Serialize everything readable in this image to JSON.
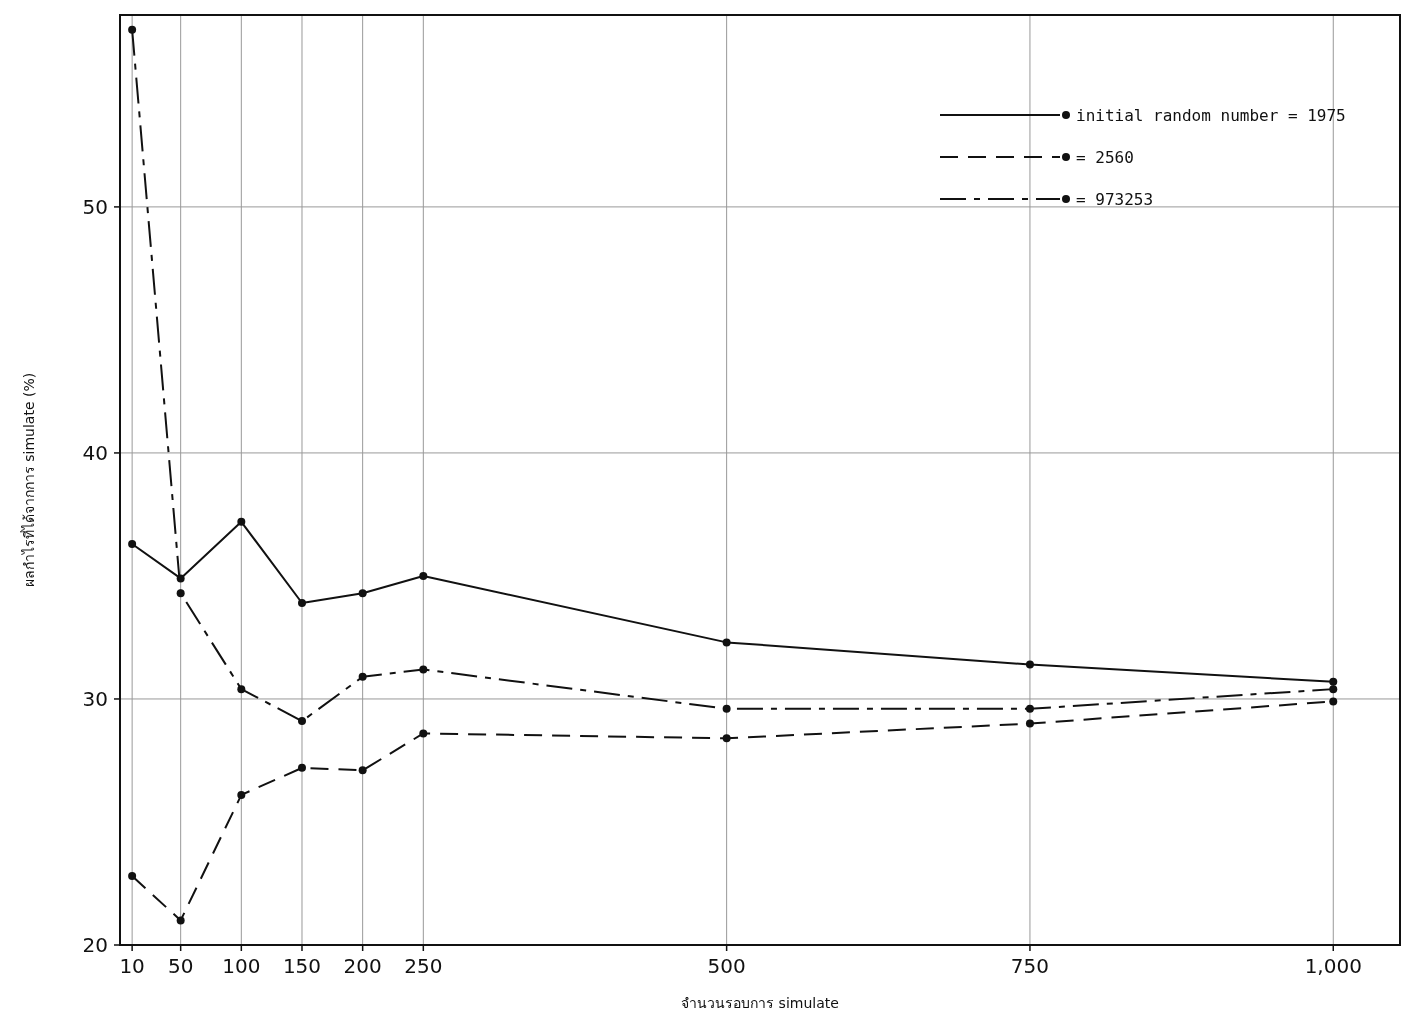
{
  "chart_data": {
    "type": "line",
    "xlabel": "จำนวนรอบการ simulate",
    "ylabel": "ผลกำไรที่ได้จากการ simulate (%)",
    "xlim": [
      0,
      1055
    ],
    "ylim": [
      20,
      57.8
    ],
    "xticks": [
      10,
      50,
      100,
      150,
      200,
      250,
      500,
      750,
      {
        "value": 1000,
        "label": "1,000"
      }
    ],
    "yticks": [
      20,
      30,
      40,
      50
    ],
    "x": [
      10,
      50,
      100,
      150,
      200,
      250,
      500,
      750,
      1000
    ],
    "series": [
      {
        "name": "initial random number = 1975",
        "color": "#111111",
        "line_style": "solid",
        "values": [
          36.3,
          34.9,
          37.2,
          33.9,
          34.3,
          35.0,
          32.3,
          31.4,
          30.7
        ]
      },
      {
        "name": "= 2560",
        "color": "#111111",
        "line_style": "dashed",
        "values": [
          22.8,
          21.0,
          26.1,
          27.2,
          27.1,
          28.6,
          28.4,
          29.0,
          29.9
        ]
      },
      {
        "name": "= 973253",
        "color": "#111111",
        "line_style": "dashdot",
        "values": [
          57.2,
          34.3,
          30.4,
          29.1,
          30.9,
          31.2,
          29.6,
          29.6,
          30.4
        ]
      }
    ],
    "marker": "circle",
    "grid": true,
    "legend": "top right"
  }
}
